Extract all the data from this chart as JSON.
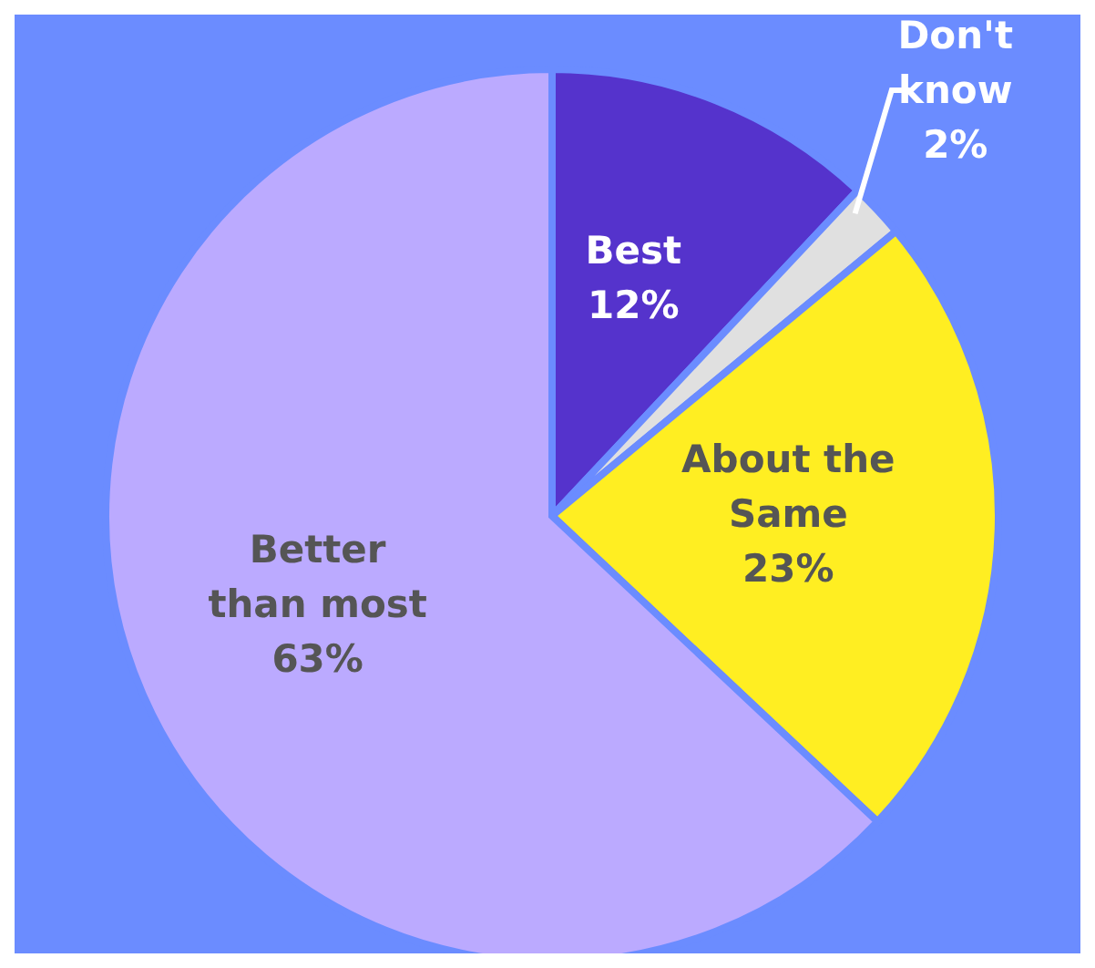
{
  "chart_data": {
    "type": "pie",
    "categories": [
      "Best",
      "Don't know",
      "About the Same",
      "Better than most"
    ],
    "values": [
      12,
      2,
      23,
      63
    ],
    "colors": [
      "#5533cc",
      "#e0e0e0",
      "#ffee22",
      "#bbaaff"
    ],
    "value_labels": [
      "12%",
      "2%",
      "23%",
      "63%"
    ],
    "legend": false
  }
}
